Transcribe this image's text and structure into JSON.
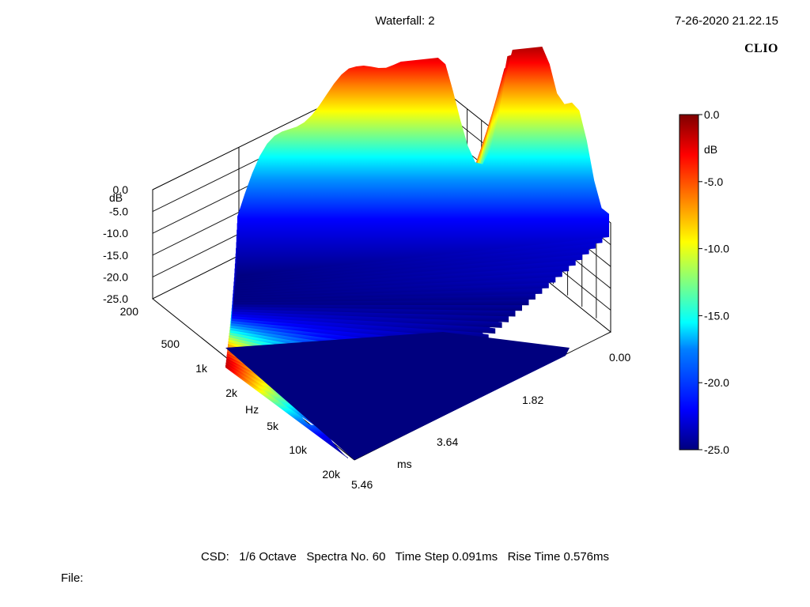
{
  "header": {
    "title": "Waterfall: 2",
    "timestamp": "7-26-2020 21.22.15",
    "brand": "CLIO"
  },
  "footer": {
    "info": "CSD:   1/6 Octave   Spectra No. 60   Time Step 0.091ms   Rise Time 0.576ms",
    "file_label": "File:"
  },
  "chart_data": {
    "type": "waterfall-3d",
    "title": "Waterfall: 2",
    "z_axis": {
      "label": "dB",
      "ticks": [
        "0.0",
        "-5.0",
        "-10.0",
        "-15.0",
        "-20.0",
        "-25.0"
      ],
      "range": [
        -25,
        0
      ]
    },
    "freq_axis": {
      "label": "Hz",
      "ticks": [
        "200",
        "500",
        "1k",
        "2k",
        "5k",
        "10k",
        "20k"
      ],
      "range": [
        200,
        20000
      ],
      "scale": "log"
    },
    "time_axis": {
      "label": "ms",
      "ticks": [
        "0.00",
        "1.82",
        "3.64",
        "5.46"
      ],
      "range": [
        0,
        5.46
      ]
    },
    "colorbar": {
      "label": "dB",
      "ticks": [
        "0.0",
        "-5.0",
        "-10.0",
        "-15.0",
        "-20.0",
        "-25.0"
      ],
      "range": [
        -25,
        0
      ],
      "colors": [
        "#00007f",
        "#0000ff",
        "#0080ff",
        "#00ffff",
        "#80ff80",
        "#ffff00",
        "#ff8000",
        "#ff0000",
        "#7f0000"
      ]
    },
    "spectra_count": 60,
    "time_step_ms": 0.091,
    "rise_time_ms": 0.576,
    "resolution": "1/6 Octave"
  }
}
